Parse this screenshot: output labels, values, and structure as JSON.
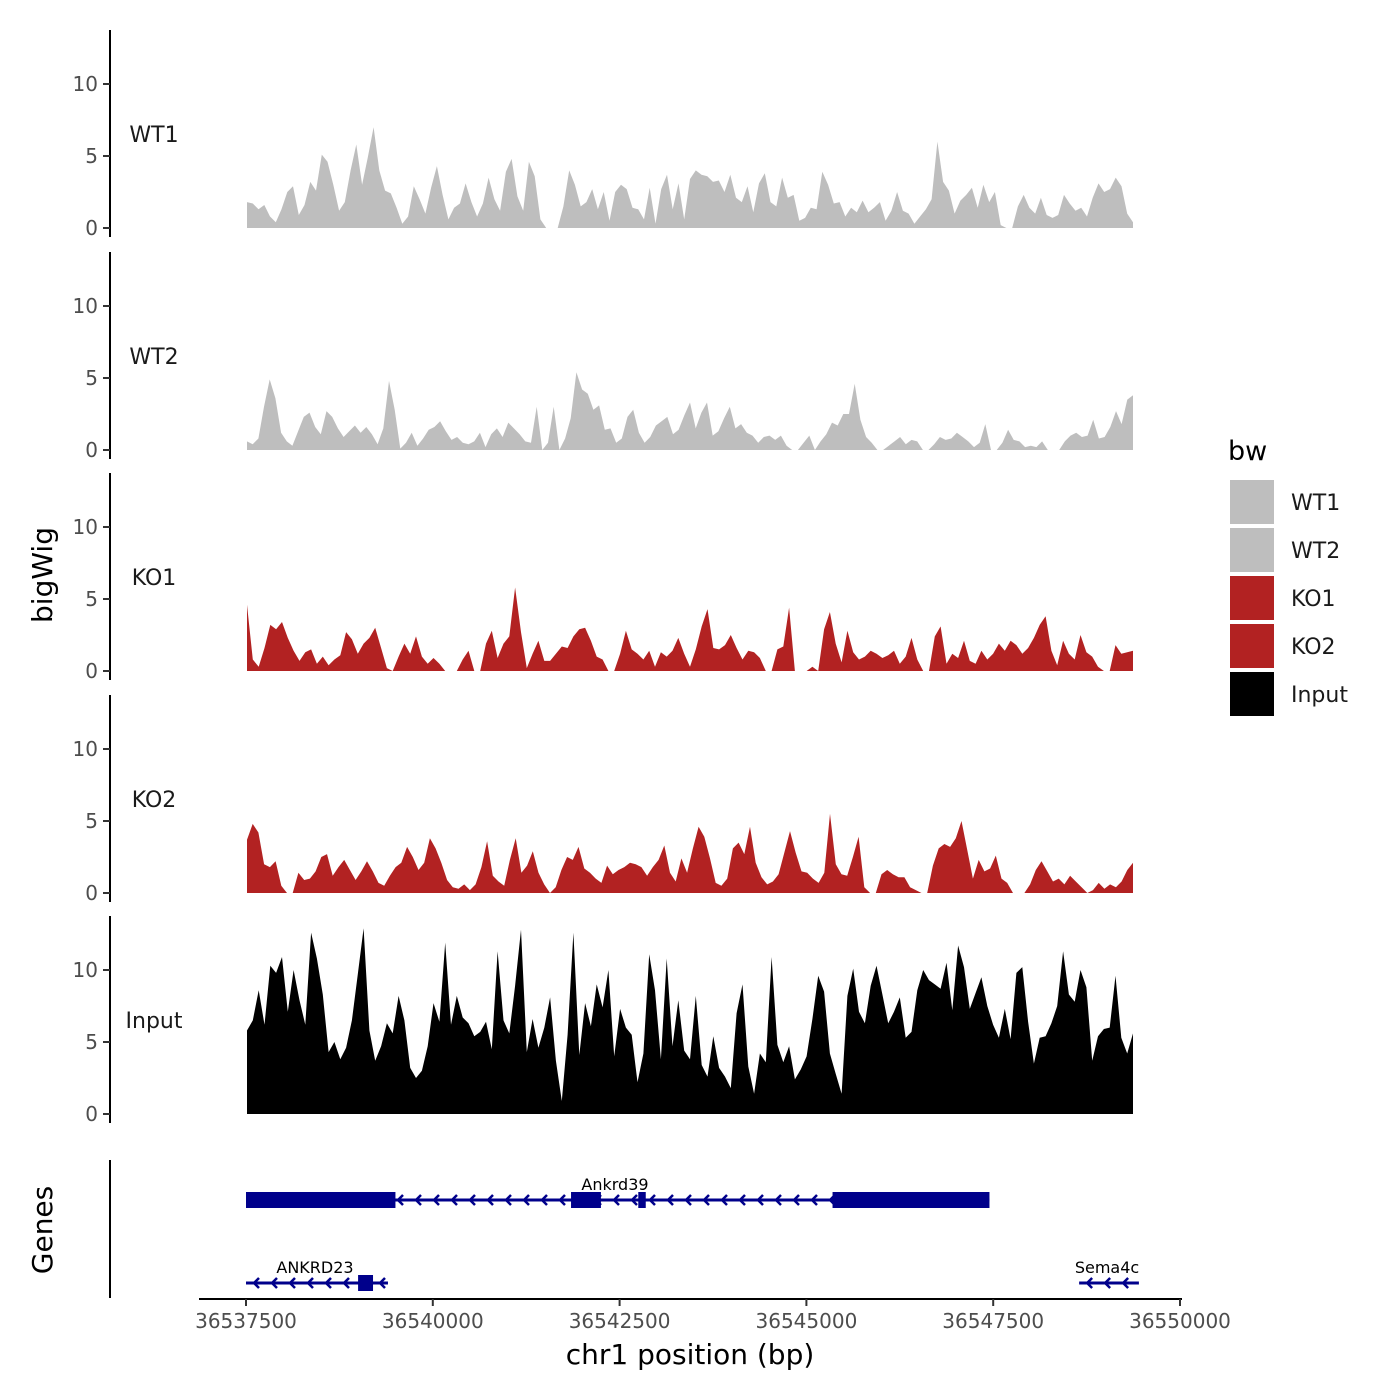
{
  "chart_data": {
    "type": "area",
    "xlabel": "chr1 position (bp)",
    "ylabel": "bigWig",
    "gene_panel_label": "Genes",
    "legend_title": "bw",
    "xlim": [
      36537500,
      36549400
    ],
    "x_ticks": [
      "36537500",
      "36540000",
      "36542500",
      "36545000",
      "36547500",
      "36550000"
    ],
    "y_ticks": [
      "0",
      "5",
      "10"
    ],
    "ylim": [
      0,
      13.5
    ],
    "tracks": [
      {
        "name": "WT1",
        "color": "#bebebe",
        "values": [
          1.8,
          1.7,
          1.3,
          1.6,
          0.8,
          0.4,
          1.3,
          2.5,
          2.9,
          0.9,
          1.6,
          3.2,
          2.6,
          5.1,
          4.6,
          3.0,
          1.2,
          1.8,
          4.0,
          5.8,
          3.0,
          4.9,
          7.0,
          4.0,
          2.6,
          2.4,
          1.4,
          0.3,
          0.8,
          2.9,
          2.0,
          1.0,
          2.8,
          4.3,
          2.3,
          0.6,
          1.4,
          1.7,
          3.1,
          1.8,
          0.8,
          1.7,
          3.5,
          2.0,
          1.2,
          3.9,
          4.8,
          2.2,
          1.2,
          4.6,
          3.6,
          0.6,
          0.0,
          0.0,
          0.0,
          1.5,
          4.0,
          3.0,
          1.5,
          1.8,
          2.7,
          1.3,
          2.5,
          0.5,
          2.5,
          3.0,
          2.7,
          1.4,
          1.3,
          0.6,
          2.8,
          0.3,
          2.7,
          3.7,
          1.3,
          3.1,
          0.6,
          3.4,
          4.0,
          3.7,
          3.6,
          3.2,
          3.3,
          2.5,
          3.7,
          2.1,
          1.8,
          2.9,
          1.1,
          3.1,
          3.8,
          1.8,
          1.5,
          3.5,
          2.1,
          2.3,
          0.5,
          0.7,
          1.4,
          1.3,
          3.9,
          3.0,
          1.7,
          1.8,
          0.8,
          1.4,
          1.1,
          1.9,
          1.1,
          1.4,
          1.8,
          0.5,
          1.2,
          2.5,
          1.2,
          1.0,
          0.3,
          0.8,
          1.3,
          2.0,
          6.0,
          3.2,
          2.6,
          1.0,
          1.9,
          2.3,
          2.8,
          1.4,
          3.0,
          1.8,
          2.5,
          0.2,
          0.0,
          0.0,
          1.5,
          2.3,
          1.4,
          1.0,
          2.1,
          0.9,
          0.7,
          0.9,
          2.3,
          1.7,
          1.2,
          1.4,
          0.8,
          2.1,
          3.1,
          2.5,
          2.7,
          3.5,
          2.9,
          1.0,
          0.4
        ]
      },
      {
        "name": "WT2",
        "color": "#bebebe",
        "values": [
          0.6,
          0.4,
          0.8,
          3.0,
          4.9,
          3.6,
          1.2,
          0.6,
          0.3,
          1.3,
          2.3,
          2.6,
          1.6,
          1.1,
          2.7,
          2.3,
          1.5,
          0.9,
          1.3,
          1.7,
          1.2,
          1.6,
          1.1,
          0.4,
          1.5,
          4.8,
          2.8,
          0.1,
          0.5,
          1.2,
          0.3,
          0.8,
          1.4,
          1.6,
          2.0,
          1.3,
          0.7,
          0.9,
          0.5,
          0.4,
          0.6,
          1.2,
          0.2,
          1.1,
          1.5,
          0.9,
          1.9,
          1.5,
          1.1,
          0.6,
          0.5,
          3.0,
          0.0,
          0.5,
          3.0,
          0.0,
          0.8,
          2.2,
          5.4,
          4.2,
          3.9,
          2.8,
          3.1,
          1.4,
          1.5,
          0.5,
          0.8,
          2.3,
          2.8,
          1.2,
          0.5,
          0.9,
          1.7,
          2.0,
          2.3,
          1.1,
          1.4,
          2.4,
          3.3,
          1.5,
          2.6,
          3.3,
          1.0,
          1.3,
          2.2,
          3.0,
          1.5,
          1.8,
          1.2,
          1.0,
          0.5,
          0.9,
          1.0,
          0.7,
          1.0,
          0.3,
          0.0,
          0.0,
          0.5,
          1.0,
          0.0,
          0.6,
          1.1,
          1.9,
          1.7,
          2.5,
          2.5,
          4.6,
          2.1,
          0.9,
          0.5,
          0.0,
          0.0,
          0.3,
          0.6,
          0.9,
          0.4,
          0.7,
          0.6,
          0.0,
          0.0,
          0.4,
          0.9,
          0.7,
          0.8,
          1.2,
          0.9,
          0.6,
          0.2,
          0.5,
          1.8,
          0.0,
          0.0,
          0.5,
          1.4,
          0.7,
          0.6,
          0.2,
          0.3,
          0.2,
          0.6,
          0.0,
          0.0,
          0.0,
          0.6,
          1.0,
          1.2,
          0.9,
          1.0,
          2.1,
          0.8,
          0.9,
          1.6,
          2.7,
          1.8,
          3.5,
          3.8
        ]
      },
      {
        "name": "KO1",
        "color": "#b22222",
        "values": [
          4.6,
          0.8,
          0.3,
          1.6,
          3.2,
          2.9,
          3.4,
          2.3,
          1.4,
          0.7,
          1.3,
          1.5,
          0.5,
          1.0,
          0.4,
          0.8,
          1.1,
          2.7,
          2.2,
          1.2,
          1.9,
          2.3,
          3.0,
          1.6,
          0.2,
          0.0,
          1.0,
          1.9,
          1.2,
          2.4,
          1.0,
          0.5,
          0.9,
          0.5,
          0.0,
          0.0,
          0.0,
          0.8,
          1.4,
          0.0,
          0.0,
          1.9,
          2.8,
          0.9,
          1.9,
          2.4,
          5.8,
          2.7,
          0.2,
          1.2,
          2.1,
          0.7,
          0.7,
          1.2,
          1.7,
          1.6,
          2.4,
          2.9,
          3.0,
          2.1,
          1.0,
          0.8,
          0.0,
          0.0,
          1.2,
          2.8,
          1.5,
          1.2,
          0.8,
          1.4,
          0.3,
          1.3,
          1.0,
          1.4,
          2.3,
          1.2,
          0.3,
          1.5,
          3.1,
          4.3,
          1.6,
          1.5,
          1.8,
          2.5,
          1.6,
          0.8,
          1.4,
          1.3,
          0.9,
          0.0,
          0.0,
          1.5,
          1.7,
          4.4,
          0.0,
          0.0,
          0.0,
          0.3,
          0.0,
          2.9,
          4.1,
          1.9,
          0.6,
          2.8,
          1.3,
          0.8,
          1.0,
          1.4,
          1.2,
          0.9,
          1.1,
          1.4,
          0.5,
          1.0,
          2.3,
          0.8,
          0.0,
          0.0,
          2.4,
          3.1,
          0.5,
          1.2,
          0.9,
          2.1,
          0.7,
          0.5,
          1.4,
          0.8,
          1.2,
          1.9,
          1.4,
          2.1,
          1.8,
          1.2,
          1.6,
          2.3,
          3.2,
          3.8,
          1.4,
          0.4,
          2.1,
          1.2,
          0.8,
          2.5,
          1.3,
          1.0,
          0.3,
          0.0,
          0.0,
          1.8,
          1.2,
          1.3,
          1.4
        ]
      },
      {
        "name": "KO2",
        "color": "#b22222",
        "values": [
          3.7,
          4.8,
          4.2,
          2.0,
          1.8,
          2.2,
          0.5,
          0.0,
          0.0,
          1.4,
          0.9,
          1.0,
          1.5,
          2.5,
          2.7,
          1.2,
          1.8,
          2.3,
          1.6,
          0.9,
          1.5,
          2.2,
          1.5,
          0.7,
          0.5,
          1.2,
          1.8,
          2.1,
          3.2,
          2.5,
          1.6,
          2.1,
          3.8,
          3.1,
          2.1,
          0.9,
          0.4,
          0.3,
          0.6,
          0.2,
          0.6,
          1.8,
          3.6,
          1.2,
          0.8,
          0.5,
          2.3,
          3.8,
          1.4,
          1.9,
          2.9,
          1.4,
          0.6,
          0.0,
          0.4,
          1.6,
          2.5,
          2.3,
          3.2,
          1.7,
          1.4,
          1.0,
          0.7,
          1.9,
          1.3,
          1.6,
          1.8,
          2.1,
          2.0,
          1.8,
          1.2,
          1.8,
          2.3,
          3.3,
          1.4,
          0.8,
          2.4,
          1.4,
          3.1,
          4.6,
          3.9,
          2.4,
          0.7,
          0.5,
          1.0,
          3.1,
          3.5,
          2.7,
          4.6,
          2.1,
          1.1,
          0.6,
          0.8,
          1.3,
          2.8,
          4.3,
          2.8,
          1.5,
          1.4,
          1.0,
          0.7,
          1.4,
          5.5,
          2.0,
          1.3,
          1.2,
          2.5,
          3.9,
          0.4,
          0.0,
          0.0,
          1.3,
          1.6,
          1.3,
          1.1,
          1.1,
          0.4,
          0.2,
          0.0,
          0.0,
          1.9,
          3.1,
          3.4,
          3.2,
          3.8,
          5.0,
          3.0,
          1.0,
          2.3,
          1.5,
          1.7,
          2.6,
          1.0,
          0.7,
          0.0,
          0.0,
          0.0,
          0.6,
          1.6,
          2.2,
          1.5,
          0.8,
          1.0,
          0.6,
          1.2,
          0.8,
          0.4,
          0.0,
          0.2,
          0.7,
          0.3,
          0.6,
          0.4,
          0.8,
          1.6,
          2.1
        ]
      },
      {
        "name": "Input",
        "color": "#000000",
        "values": [
          5.8,
          6.5,
          8.6,
          6.2,
          10.3,
          9.8,
          10.9,
          7.1,
          10.0,
          7.9,
          6.2,
          12.6,
          10.8,
          8.3,
          4.3,
          5.0,
          3.8,
          4.6,
          6.5,
          9.7,
          12.9,
          5.8,
          3.7,
          4.7,
          6.3,
          5.6,
          8.2,
          6.5,
          3.2,
          2.5,
          3.0,
          4.7,
          7.7,
          6.4,
          11.9,
          6.2,
          8.2,
          6.7,
          6.3,
          5.4,
          5.7,
          6.4,
          4.5,
          11.3,
          6.5,
          5.6,
          8.9,
          12.8,
          4.3,
          6.6,
          4.6,
          6.0,
          8.1,
          3.7,
          0.9,
          5.5,
          12.6,
          4.1,
          7.7,
          6.1,
          9.0,
          7.4,
          10.0,
          4.0,
          7.3,
          6.0,
          5.5,
          2.2,
          4.2,
          11.1,
          8.6,
          3.8,
          10.8,
          4.7,
          7.9,
          4.4,
          3.8,
          8.2,
          3.4,
          2.6,
          5.4,
          3.2,
          2.6,
          1.8,
          7.0,
          9.0,
          3.3,
          1.4,
          4.2,
          3.6,
          10.9,
          4.8,
          3.6,
          4.7,
          2.4,
          3.1,
          4.0,
          6.6,
          9.6,
          8.5,
          4.2,
          2.8,
          1.4,
          8.2,
          10.1,
          7.1,
          6.3,
          8.9,
          10.3,
          8.3,
          6.3,
          7.1,
          8.1,
          5.3,
          5.7,
          8.6,
          10.0,
          9.3,
          9.0,
          8.7,
          10.5,
          7.2,
          11.7,
          10.2,
          7.3,
          8.4,
          9.5,
          7.5,
          6.2,
          5.3,
          7.3,
          5.2,
          9.8,
          10.2,
          6.4,
          3.5,
          5.3,
          5.4,
          6.3,
          7.5,
          11.3,
          8.3,
          7.8,
          10.0,
          8.8,
          3.7,
          5.4,
          5.9,
          6.0,
          9.6,
          5.3,
          4.2,
          5.6
        ]
      }
    ],
    "genes": [
      {
        "name": "Ankrd39",
        "start": 36537500,
        "end": 36547450,
        "strand": "-",
        "row": 1,
        "exons": [
          [
            36537500,
            36539500
          ],
          [
            36541850,
            36542250
          ],
          [
            36542750,
            36542850
          ],
          [
            36545350,
            36547450
          ]
        ]
      },
      {
        "name": "ANKRD23",
        "start": 36537500,
        "end": 36539400,
        "strand": "-",
        "row": 2,
        "exons": [
          [
            36539000,
            36539200
          ]
        ]
      },
      {
        "name": "Sema4c",
        "start": 36548650,
        "end": 36549450,
        "strand": "-",
        "row": 2,
        "exons": []
      }
    ]
  }
}
